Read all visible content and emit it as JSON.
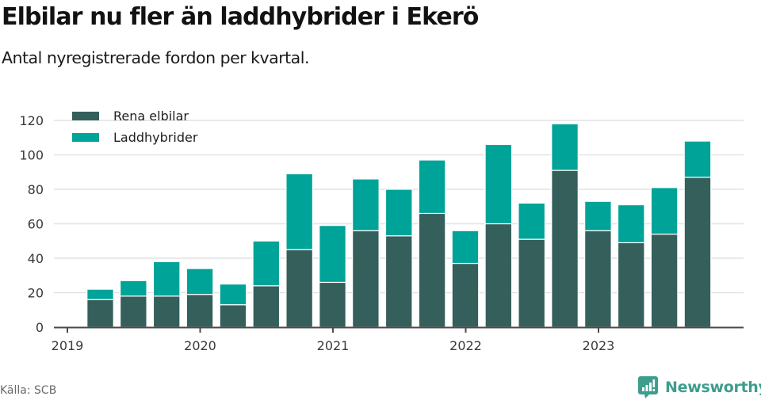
{
  "header": {
    "title": "Elbilar nu fler än laddhybrider i Ekerö",
    "subtitle": "Antal nyregistrerade fordon per kvartal."
  },
  "footer": {
    "source": "Källa: SCB",
    "brand": "Newsworthy",
    "brand_icon": "newsworthy-logo-icon"
  },
  "colors": {
    "rena_elbilar": "#355f5b",
    "laddhybrider": "#00a398",
    "grid": "#e2e2e2",
    "axis": "#4a4a4a",
    "brand": "#3e9d8d"
  },
  "chart_data": {
    "type": "bar",
    "stacked": true,
    "title": "Elbilar nu fler än laddhybrider i Ekerö",
    "subtitle": "Antal nyregistrerade fordon per kvartal.",
    "xlabel": "",
    "ylabel": "",
    "ylim": [
      0,
      120
    ],
    "yticks": [
      0,
      20,
      40,
      60,
      80,
      100,
      120
    ],
    "xticks": [
      "2019",
      "2020",
      "2021",
      "2022",
      "2023"
    ],
    "grid": true,
    "legend_position": "top-left",
    "categories": [
      "2019 Q1",
      "2019 Q2",
      "2019 Q3",
      "2019 Q4",
      "2020 Q1",
      "2020 Q2",
      "2020 Q3",
      "2020 Q4",
      "2021 Q1",
      "2021 Q2",
      "2021 Q3",
      "2021 Q4",
      "2022 Q1",
      "2022 Q2",
      "2022 Q3",
      "2022 Q4",
      "2023 Q1",
      "2023 Q2",
      "2023 Q3"
    ],
    "series": [
      {
        "name": "Rena elbilar",
        "color": "#355f5b",
        "values": [
          16,
          18,
          18,
          19,
          13,
          24,
          45,
          26,
          56,
          53,
          66,
          37,
          60,
          51,
          91,
          56,
          49,
          54,
          87
        ]
      },
      {
        "name": "Laddhybrider",
        "color": "#00a398",
        "values": [
          6,
          9,
          20,
          15,
          12,
          26,
          44,
          33,
          30,
          27,
          31,
          19,
          46,
          21,
          27,
          17,
          22,
          27,
          21
        ]
      }
    ]
  }
}
